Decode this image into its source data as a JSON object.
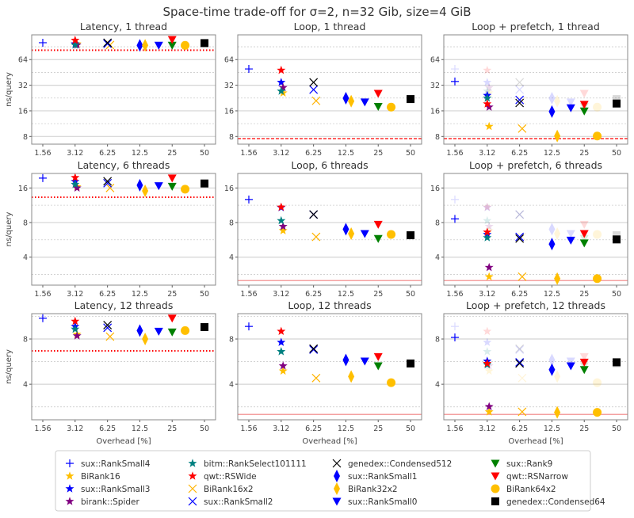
{
  "chart_data": {
    "type": "scatter",
    "title": "Space-time trade-off for σ=2, n=32 Gib, size=4 GiB",
    "xlabel": "Overhead [%]",
    "ylabel": "ns/query",
    "xscale": "log2",
    "yscale": "log2",
    "xlim": [
      1.23,
      63.4
    ],
    "xticks": [
      "1.56",
      "3.12",
      "6.25",
      "12.5",
      "25",
      "50"
    ],
    "grid": true,
    "legend_placement": "bottom",
    "series": [
      {
        "name": "sux::RankSmall4",
        "marker": "plus",
        "color": "#0000ff",
        "x": 1.56
      },
      {
        "name": "BiRank16",
        "marker": "star",
        "color": "#ffbf00",
        "x": 3.25
      },
      {
        "name": "sux::RankSmall3",
        "marker": "star",
        "color": "#0000ff",
        "x": 3.12
      },
      {
        "name": "birank::Spider",
        "marker": "star",
        "color": "#800080",
        "x": 3.25
      },
      {
        "name": "bitm::RankSelect101111",
        "marker": "star",
        "color": "#008080",
        "x": 3.12
      },
      {
        "name": "qwt::RSWide",
        "marker": "star",
        "color": "#ff0000",
        "x": 3.12
      },
      {
        "name": "BiRank16x2",
        "marker": "x",
        "color": "#ffb300",
        "x": 6.6
      },
      {
        "name": "sux::RankSmall2",
        "marker": "x",
        "color": "#0000ff",
        "x": 6.25
      },
      {
        "name": "genedex::Condensed512",
        "marker": "x",
        "color": "#000000",
        "x": 6.25
      },
      {
        "name": "sux::RankSmall1",
        "marker": "diamond",
        "color": "#0000ff",
        "x": 12.5
      },
      {
        "name": "BiRank32x2",
        "marker": "diamond",
        "color": "#ffbf00",
        "x": 14
      },
      {
        "name": "sux::RankSmall0",
        "marker": "tri",
        "color": "#0000ff",
        "x": 18.75
      },
      {
        "name": "sux::Rank9",
        "marker": "tri",
        "color": "#008000",
        "x": 25
      },
      {
        "name": "qwt::RSNarrow",
        "marker": "tri",
        "color": "#ff0000",
        "x": 25
      },
      {
        "name": "BiRank64x2",
        "marker": "circle",
        "color": "#ffbf00",
        "x": 33
      },
      {
        "name": "genedex::Condensed64",
        "marker": "square",
        "color": "#000000",
        "x": 50
      }
    ],
    "panels": [
      {
        "title": "Latency, 1 thread",
        "ylim": [
          6.5,
          125
        ],
        "yticks": [
          "8",
          "16",
          "32",
          "64"
        ],
        "reference": {
          "value": 82.5,
          "style": "dotted"
        },
        "values": [
          101,
          98,
          98,
          95,
          95,
          108,
          95,
          98,
          101,
          94,
          94,
          94,
          94,
          110,
          94,
          100
        ]
      },
      {
        "title": "Loop, 1 thread",
        "ylim": [
          6.5,
          125
        ],
        "yticks": [
          "8",
          "16",
          "32",
          "64"
        ],
        "reference": {
          "value": 7.55,
          "style": "dashed"
        },
        "values": [
          49.7,
          26,
          34.6,
          30,
          27.3,
          48,
          21,
          28.4,
          34.6,
          22.5,
          20.8,
          20.3,
          18,
          25.6,
          17.7,
          22
        ]
      },
      {
        "title": "Loop + prefetch, 1 thread",
        "ylim": [
          6.5,
          125
        ],
        "yticks": [
          "8",
          "16",
          "32",
          "64"
        ],
        "reference": {
          "value": 7.55,
          "style": "dashed"
        },
        "ghost_of": 1,
        "values": [
          35.4,
          10.5,
          24.3,
          17.7,
          22.6,
          19.3,
          9.9,
          21.5,
          19.8,
          15.7,
          8.1,
          17.3,
          15.9,
          19,
          8.1,
          19.5
        ]
      },
      {
        "title": "Latency, 6 threads",
        "ylim": [
          2.28,
          21.4
        ],
        "yticks": [
          "4",
          "8",
          "16"
        ],
        "reference": {
          "value": 13.3,
          "style": "dotted"
        },
        "values": [
          19.5,
          16.4,
          18.2,
          16,
          17.2,
          19.7,
          16,
          17.6,
          18.3,
          16.9,
          15.1,
          16.7,
          16.5,
          19.5,
          15.6,
          17.5
        ]
      },
      {
        "title": "Loop, 6 threads",
        "ylim": [
          2.28,
          21.4
        ],
        "yticks": [
          "4",
          "8",
          "16"
        ],
        "reference": {
          "value": 2.5,
          "style": "solid"
        },
        "values": [
          12.7,
          6.8,
          10.8,
          7.4,
          8.3,
          10.9,
          6.0,
          9.4,
          9.4,
          7.0,
          6.4,
          6.4,
          5.8,
          7.7,
          6.3,
          6.2
        ]
      },
      {
        "title": "Loop + prefetch, 6 threads",
        "ylim": [
          2.28,
          21.4
        ],
        "yticks": [
          "4",
          "8",
          "16"
        ],
        "reference": {
          "value": 2.5,
          "style": "solid"
        },
        "ghost_of": 4,
        "values": [
          8.6,
          2.7,
          6.3,
          3.25,
          5.9,
          6.6,
          2.7,
          6.0,
          5.8,
          5.2,
          2.6,
          5.6,
          5.3,
          6.4,
          2.6,
          5.7
        ]
      },
      {
        "title": "Latency, 12 threads",
        "ylim": [
          2.32,
          11.8
        ],
        "yticks": [
          "4",
          "8"
        ],
        "reference": {
          "value": 6.67,
          "style": "dotted"
        },
        "values": [
          11,
          8.6,
          9.7,
          8.4,
          9.3,
          10.5,
          8.3,
          9.5,
          9.9,
          9.1,
          8.0,
          9.0,
          8.9,
          11,
          9.1,
          9.6
        ]
      },
      {
        "title": "Loop, 12 threads",
        "ylim": [
          2.32,
          11.8
        ],
        "yticks": [
          "4",
          "8"
        ],
        "reference": {
          "value": 2.52,
          "style": "solid"
        },
        "values": [
          9.7,
          4.9,
          7.6,
          5.3,
          6.6,
          9.0,
          4.4,
          6.8,
          6.9,
          5.8,
          4.5,
          5.7,
          5.3,
          6.1,
          4.1,
          5.5
        ]
      },
      {
        "title": "Loop + prefetch, 12 threads",
        "ylim": [
          2.32,
          11.8
        ],
        "yticks": [
          "4",
          "8"
        ],
        "reference": {
          "value": 2.52,
          "style": "solid"
        },
        "ghost_of": 7,
        "values": [
          8.2,
          2.62,
          5.7,
          2.84,
          5.4,
          5.5,
          2.62,
          5.6,
          5.5,
          5.0,
          2.6,
          5.3,
          5.0,
          5.6,
          2.6,
          5.6
        ]
      }
    ]
  }
}
